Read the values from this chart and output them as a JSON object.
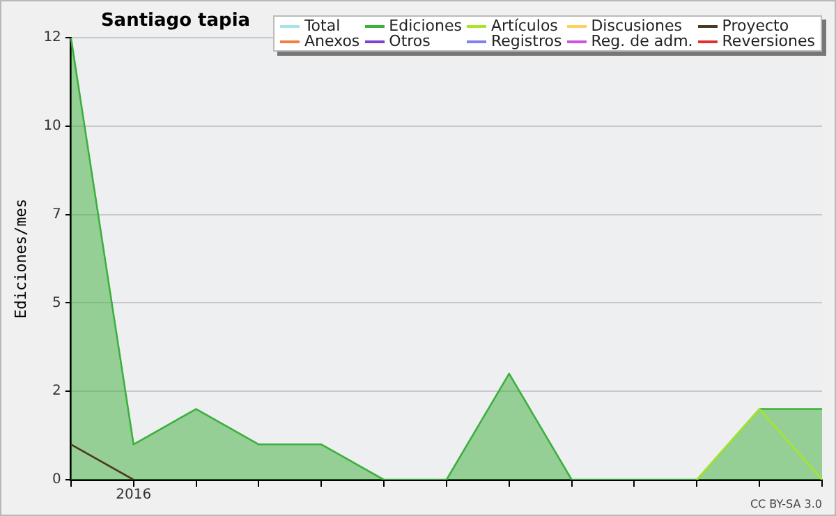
{
  "chart_data": {
    "type": "line",
    "title": "Santiago tapia",
    "ylabel": "Ediciones/mes",
    "categories": [
      null,
      "2016",
      null,
      null,
      null,
      null,
      null,
      null,
      null,
      null,
      null,
      null,
      null
    ],
    "ylim": [
      0,
      12.5
    ],
    "yticks": [
      {
        "value": 0,
        "label": "0"
      },
      {
        "value": 2.5,
        "label": "2"
      },
      {
        "value": 5,
        "label": "5"
      },
      {
        "value": 7.5,
        "label": "7"
      },
      {
        "value": 10,
        "label": "10"
      },
      {
        "value": 12.5,
        "label": "12"
      }
    ],
    "grid": "y",
    "legend": "top right",
    "marker": "none",
    "line_style": "solid",
    "annotations": [
      "CC BY-SA 3.0"
    ],
    "series": [
      {
        "name": "Total",
        "color": "#a8e4e4",
        "values": [
          null,
          null,
          null,
          null,
          null,
          null,
          null,
          null,
          null,
          null,
          null,
          null,
          null
        ]
      },
      {
        "name": "Ediciones",
        "type": "area",
        "color": "#3cb03c",
        "values": [
          12.5,
          1,
          2,
          1,
          1,
          0,
          0,
          3,
          0,
          0,
          0,
          2,
          2
        ]
      },
      {
        "name": "Artículos",
        "color": "#a8e628",
        "values": [
          null,
          null,
          null,
          null,
          null,
          null,
          null,
          null,
          null,
          null,
          0,
          2,
          0
        ]
      },
      {
        "name": "Discusiones",
        "color": "#ffd060",
        "values": [
          null,
          null,
          null,
          null,
          null,
          null,
          null,
          null,
          null,
          null,
          null,
          null,
          null
        ]
      },
      {
        "name": "Proyecto",
        "color": "#4a3a20",
        "values": [
          1,
          0,
          null,
          null,
          null,
          null,
          null,
          null,
          null,
          null,
          null,
          null,
          null
        ]
      },
      {
        "name": "Anexos",
        "color": "#f08040",
        "values": [
          null,
          null,
          null,
          null,
          null,
          null,
          null,
          null,
          null,
          null,
          null,
          null,
          null
        ]
      },
      {
        "name": "Otros",
        "color": "#8040d0",
        "values": [
          null,
          null,
          null,
          null,
          null,
          null,
          null,
          null,
          null,
          null,
          null,
          null,
          null
        ]
      },
      {
        "name": "Registros",
        "color": "#8080f0",
        "values": [
          null,
          null,
          null,
          null,
          null,
          null,
          null,
          null,
          null,
          null,
          null,
          null,
          null
        ]
      },
      {
        "name": "Reg. de adm.",
        "color": "#d050e0",
        "values": [
          null,
          null,
          null,
          null,
          null,
          null,
          null,
          null,
          null,
          null,
          null,
          null,
          null
        ]
      },
      {
        "name": "Reversiones",
        "color": "#e03030",
        "values": [
          null,
          null,
          null,
          null,
          null,
          null,
          null,
          null,
          null,
          null,
          null,
          null,
          null
        ]
      }
    ]
  }
}
